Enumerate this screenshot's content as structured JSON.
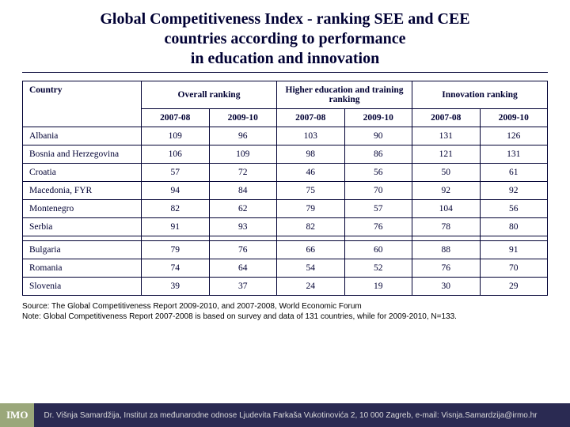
{
  "title_lines": [
    "Global Competitiveness Index - ranking SEE and CEE",
    "countries according to performance",
    "in education and innovation"
  ],
  "table": {
    "col_country": "Country",
    "group_headers": [
      "Overall ranking",
      "Higher education and training ranking",
      "Innovation ranking"
    ],
    "year_headers": [
      "2007-08",
      "2009-10",
      "2007-08",
      "2009-10",
      "2007-08",
      "2009-10"
    ],
    "rows_group1": [
      {
        "country": "Albania",
        "vals": [
          109,
          96,
          103,
          90,
          131,
          126
        ]
      },
      {
        "country": "Bosnia and Herzegovina",
        "vals": [
          106,
          109,
          98,
          86,
          121,
          131
        ]
      },
      {
        "country": "Croatia",
        "vals": [
          57,
          72,
          46,
          56,
          50,
          61
        ]
      },
      {
        "country": "Macedonia, FYR",
        "vals": [
          94,
          84,
          75,
          70,
          92,
          92
        ]
      },
      {
        "country": "Montenegro",
        "vals": [
          82,
          62,
          79,
          57,
          104,
          56
        ]
      },
      {
        "country": "Serbia",
        "vals": [
          91,
          93,
          82,
          76,
          78,
          80
        ]
      }
    ],
    "rows_group2": [
      {
        "country": "Bulgaria",
        "vals": [
          79,
          76,
          66,
          60,
          88,
          91
        ]
      },
      {
        "country": "Romania",
        "vals": [
          74,
          64,
          54,
          52,
          76,
          70
        ]
      },
      {
        "country": "Slovenia",
        "vals": [
          39,
          37,
          24,
          19,
          30,
          29
        ]
      }
    ]
  },
  "source_lines": [
    "Source: The Global Competitiveness Report 2009-2010, and 2007-2008, World Economic Forum",
    "Note: Global Competitiveness Report 2007-2008 is based on survey and data of 131 countries, while for 2009-2010, N=133."
  ],
  "footer": {
    "logo": "IMO",
    "text": "Dr. Višnja Samardžija, Institut za međunarodne odnose   Ljudevita Farkaša Vukotinovića 2, 10 000 Zagreb, e-mail: Visnja.Samardzija@irmo.hr"
  },
  "style": {
    "text_color": "#000033",
    "border_color": "#000033",
    "footer_bar_bg": "#2a2a52",
    "footer_logo_bg": "#9aa77a",
    "background": "#ffffff",
    "title_fontsize": 20,
    "table_fontsize": 11.5,
    "source_fontsize": 10
  }
}
